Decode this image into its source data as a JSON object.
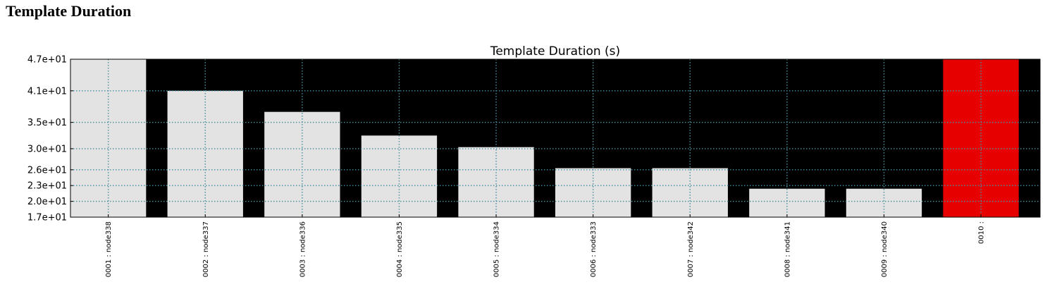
{
  "page": {
    "heading": "Template Duration"
  },
  "chart_data": {
    "type": "bar",
    "title": "Template Duration (s)",
    "xlabel": "",
    "ylabel": "",
    "categories": [
      "0001 : node338",
      "0002 : node337",
      "0003 : node336",
      "0004 : node335",
      "0005 : node334",
      "0006 : node333",
      "0007 : node342",
      "0008 : node341",
      "0009 : node340",
      "0010 :"
    ],
    "values": [
      47,
      41,
      37,
      32.5,
      30.3,
      26.3,
      26.3,
      22.4,
      22.4,
      47
    ],
    "bar_colors": [
      "#e3e3e3",
      "#e3e3e3",
      "#e3e3e3",
      "#e3e3e3",
      "#e3e3e3",
      "#e3e3e3",
      "#e3e3e3",
      "#e3e3e3",
      "#e3e3e3",
      "#e60000"
    ],
    "ylim": [
      17,
      47
    ],
    "yticks": [
      17,
      20,
      23,
      26,
      30,
      35,
      41,
      47
    ],
    "ytick_labels": [
      "1.7e+01",
      "2.0e+01",
      "2.3e+01",
      "2.6e+01",
      "3.0e+01",
      "3.5e+01",
      "4.1e+01",
      "4.7e+01"
    ],
    "grid": true,
    "colors": {
      "plot_background": "#000000",
      "bar_default": "#e3e3e3",
      "bar_highlight": "#e60000",
      "grid": "#4a8fa0"
    }
  }
}
